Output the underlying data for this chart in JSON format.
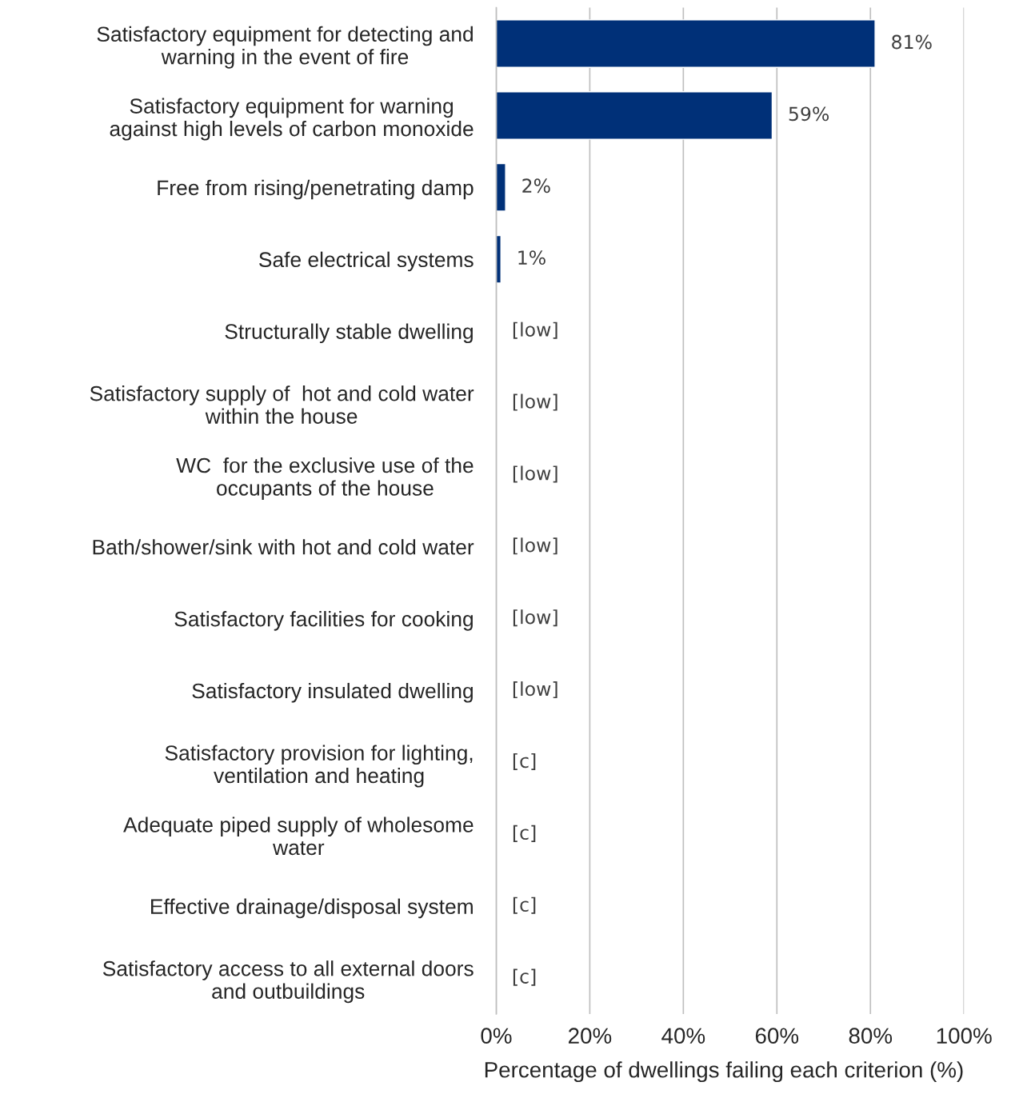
{
  "chart_data": {
    "type": "bar",
    "orientation": "horizontal",
    "xlabel": "Percentage of dwellings failing each criterion (%)",
    "categories": [
      "Satisfactory equipment for detecting and\nwarning in the event of fire",
      "Satisfactory equipment for warning\nagainst high levels of carbon monoxide",
      "Free from rising/penetrating damp",
      "Safe electrical systems",
      "Structurally stable dwelling",
      "Satisfactory supply of  hot and cold water\nwithin the house",
      "WC  for the exclusive use of the\noccupants of the house",
      "Bath/shower/sink with hot and cold water",
      "Satisfactory facilities for cooking",
      "Satisfactory insulated dwelling",
      "Satisfactory provision for lighting,\nventilation and heating",
      "Adequate piped supply of wholesome\nwater",
      "Effective drainage/disposal system",
      "Satisfactory access to all external doors\nand outbuildings"
    ],
    "values": [
      81,
      59,
      2,
      1,
      null,
      null,
      null,
      null,
      null,
      null,
      null,
      null,
      null,
      null
    ],
    "value_labels": [
      "81%",
      "59%",
      "2%",
      "1%",
      "[low]",
      "[low]",
      "[low]",
      "[low]",
      "[low]",
      "[low]",
      "[c]",
      "[c]",
      "[c]",
      "[c]"
    ],
    "color": "#003078",
    "xlim": [
      0,
      100
    ],
    "xticks": [
      {
        "value": 0,
        "label": "0%"
      },
      {
        "value": 20,
        "label": "20%"
      },
      {
        "value": 40,
        "label": "40%"
      },
      {
        "value": 60,
        "label": "60%"
      },
      {
        "value": 80,
        "label": "80%"
      },
      {
        "value": 100,
        "label": "100%"
      }
    ],
    "grid": "x",
    "legend": false
  }
}
